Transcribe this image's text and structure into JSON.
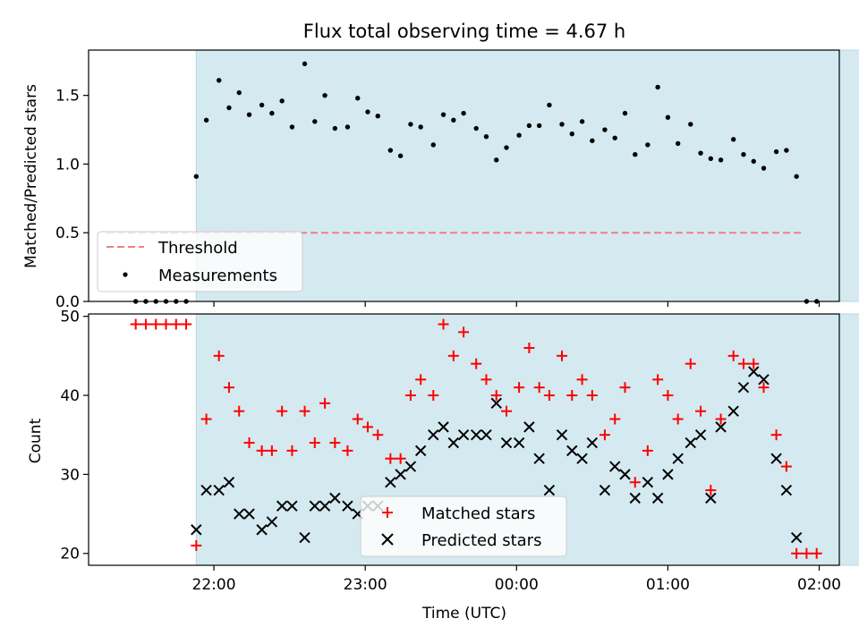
{
  "chart_data": [
    {
      "type": "scatter",
      "title": "Flux total observing time = 4.67 h",
      "ylabel": "Matched/Predicted stars",
      "xlabel": "",
      "ylim": [
        0,
        1.83
      ],
      "yticks": [
        "0.0",
        "0.5",
        "1.0",
        "1.5"
      ],
      "grid": false,
      "legend_position": "lower-left",
      "observing_window": {
        "start": "21:53",
        "end": "02:34"
      },
      "threshold": {
        "name": "Threshold",
        "value": 0.5,
        "color": "#f08080",
        "style": "dashed"
      },
      "series": [
        {
          "name": "Measurements",
          "color": "#000000",
          "marker": "dot",
          "points": [
            [
              "21:29",
              0
            ],
            [
              "21:33",
              0
            ],
            [
              "21:37",
              0
            ],
            [
              "21:41",
              0
            ],
            [
              "21:45",
              0
            ],
            [
              "21:49",
              0
            ],
            [
              "21:53",
              0.91
            ],
            [
              "21:57",
              1.32
            ],
            [
              "22:02",
              1.61
            ],
            [
              "22:06",
              1.41
            ],
            [
              "22:10",
              1.52
            ],
            [
              "22:14",
              1.36
            ],
            [
              "22:19",
              1.43
            ],
            [
              "22:23",
              1.37
            ],
            [
              "22:27",
              1.46
            ],
            [
              "22:31",
              1.27
            ],
            [
              "22:36",
              1.73
            ],
            [
              "22:40",
              1.31
            ],
            [
              "22:44",
              1.5
            ],
            [
              "22:48",
              1.26
            ],
            [
              "22:53",
              1.27
            ],
            [
              "22:57",
              1.48
            ],
            [
              "23:01",
              1.38
            ],
            [
              "23:05",
              1.35
            ],
            [
              "23:10",
              1.1
            ],
            [
              "23:14",
              1.06
            ],
            [
              "23:18",
              1.29
            ],
            [
              "23:22",
              1.27
            ],
            [
              "23:27",
              1.14
            ],
            [
              "23:31",
              1.36
            ],
            [
              "23:35",
              1.32
            ],
            [
              "23:39",
              1.37
            ],
            [
              "23:44",
              1.26
            ],
            [
              "23:48",
              1.2
            ],
            [
              "23:52",
              1.03
            ],
            [
              "23:56",
              1.12
            ],
            [
              "00:01",
              1.21
            ],
            [
              "00:05",
              1.28
            ],
            [
              "00:09",
              1.28
            ],
            [
              "00:13",
              1.43
            ],
            [
              "00:18",
              1.29
            ],
            [
              "00:22",
              1.22
            ],
            [
              "00:26",
              1.31
            ],
            [
              "00:30",
              1.17
            ],
            [
              "00:35",
              1.25
            ],
            [
              "00:39",
              1.19
            ],
            [
              "00:43",
              1.37
            ],
            [
              "00:47",
              1.07
            ],
            [
              "00:52",
              1.14
            ],
            [
              "00:56",
              1.56
            ],
            [
              "01:00",
              1.34
            ],
            [
              "01:04",
              1.15
            ],
            [
              "01:09",
              1.29
            ],
            [
              "01:13",
              1.08
            ],
            [
              "01:17",
              1.04
            ],
            [
              "01:21",
              1.03
            ],
            [
              "01:26",
              1.18
            ],
            [
              "01:30",
              1.07
            ],
            [
              "01:34",
              1.02
            ],
            [
              "01:38",
              0.97
            ],
            [
              "01:43",
              1.09
            ],
            [
              "01:47",
              1.1
            ],
            [
              "01:51",
              0.91
            ],
            [
              "01:55",
              0
            ],
            [
              "01:59",
              0
            ]
          ]
        }
      ]
    },
    {
      "type": "scatter",
      "title": "",
      "ylabel": "Count",
      "xlabel": "Time (UTC)",
      "ylim": [
        18.5,
        50.3
      ],
      "yticks": [
        "20",
        "30",
        "40",
        "50"
      ],
      "xticks": [
        "22:00",
        "23:00",
        "00:00",
        "01:00",
        "02:00"
      ],
      "grid": false,
      "legend_position": "lower-center",
      "observing_window": {
        "start": "21:53",
        "end": "02:34"
      },
      "series": [
        {
          "name": "Matched stars",
          "color": "#ff0000",
          "marker": "plus",
          "points": [
            [
              "21:29",
              49
            ],
            [
              "21:33",
              49
            ],
            [
              "21:37",
              49
            ],
            [
              "21:41",
              49
            ],
            [
              "21:45",
              49
            ],
            [
              "21:49",
              49
            ],
            [
              "21:53",
              21
            ],
            [
              "21:57",
              37
            ],
            [
              "22:02",
              45
            ],
            [
              "22:06",
              41
            ],
            [
              "22:10",
              38
            ],
            [
              "22:14",
              34
            ],
            [
              "22:19",
              33
            ],
            [
              "22:23",
              33
            ],
            [
              "22:27",
              38
            ],
            [
              "22:31",
              33
            ],
            [
              "22:36",
              38
            ],
            [
              "22:40",
              34
            ],
            [
              "22:44",
              39
            ],
            [
              "22:48",
              34
            ],
            [
              "22:53",
              33
            ],
            [
              "22:57",
              37
            ],
            [
              "23:01",
              36
            ],
            [
              "23:05",
              35
            ],
            [
              "23:10",
              32
            ],
            [
              "23:14",
              32
            ],
            [
              "23:18",
              40
            ],
            [
              "23:22",
              42
            ],
            [
              "23:27",
              40
            ],
            [
              "23:31",
              49
            ],
            [
              "23:35",
              45
            ],
            [
              "23:39",
              48
            ],
            [
              "23:44",
              44
            ],
            [
              "23:48",
              42
            ],
            [
              "23:52",
              40
            ],
            [
              "23:56",
              38
            ],
            [
              "00:01",
              41
            ],
            [
              "00:05",
              46
            ],
            [
              "00:09",
              41
            ],
            [
              "00:13",
              40
            ],
            [
              "00:18",
              45
            ],
            [
              "00:22",
              40
            ],
            [
              "00:26",
              42
            ],
            [
              "00:30",
              40
            ],
            [
              "00:35",
              35
            ],
            [
              "00:39",
              37
            ],
            [
              "00:43",
              41
            ],
            [
              "00:47",
              29
            ],
            [
              "00:52",
              33
            ],
            [
              "00:56",
              42
            ],
            [
              "01:00",
              40
            ],
            [
              "01:04",
              37
            ],
            [
              "01:09",
              44
            ],
            [
              "01:13",
              38
            ],
            [
              "01:17",
              28
            ],
            [
              "01:21",
              37
            ],
            [
              "01:26",
              45
            ],
            [
              "01:30",
              44
            ],
            [
              "01:34",
              44
            ],
            [
              "01:38",
              41
            ],
            [
              "01:43",
              35
            ],
            [
              "01:47",
              31
            ],
            [
              "01:51",
              20
            ],
            [
              "01:55",
              20
            ],
            [
              "01:59",
              20
            ]
          ]
        },
        {
          "name": "Predicted stars",
          "color": "#000000",
          "marker": "x",
          "points": [
            [
              "21:53",
              23
            ],
            [
              "21:57",
              28
            ],
            [
              "22:02",
              28
            ],
            [
              "22:06",
              29
            ],
            [
              "22:10",
              25
            ],
            [
              "22:14",
              25
            ],
            [
              "22:19",
              23
            ],
            [
              "22:23",
              24
            ],
            [
              "22:27",
              26
            ],
            [
              "22:31",
              26
            ],
            [
              "22:36",
              22
            ],
            [
              "22:40",
              26
            ],
            [
              "22:44",
              26
            ],
            [
              "22:48",
              27
            ],
            [
              "22:53",
              26
            ],
            [
              "22:57",
              25
            ],
            [
              "23:01",
              26
            ],
            [
              "23:05",
              26
            ],
            [
              "23:10",
              29
            ],
            [
              "23:14",
              30
            ],
            [
              "23:18",
              31
            ],
            [
              "23:22",
              33
            ],
            [
              "23:27",
              35
            ],
            [
              "23:31",
              36
            ],
            [
              "23:35",
              34
            ],
            [
              "23:39",
              35
            ],
            [
              "23:44",
              35
            ],
            [
              "23:48",
              35
            ],
            [
              "23:52",
              39
            ],
            [
              "23:56",
              34
            ],
            [
              "00:01",
              34
            ],
            [
              "00:05",
              36
            ],
            [
              "00:09",
              32
            ],
            [
              "00:13",
              28
            ],
            [
              "00:18",
              35
            ],
            [
              "00:22",
              33
            ],
            [
              "00:26",
              32
            ],
            [
              "00:30",
              34
            ],
            [
              "00:35",
              28
            ],
            [
              "00:39",
              31
            ],
            [
              "00:43",
              30
            ],
            [
              "00:47",
              27
            ],
            [
              "00:52",
              29
            ],
            [
              "00:56",
              27
            ],
            [
              "01:00",
              30
            ],
            [
              "01:04",
              32
            ],
            [
              "01:09",
              34
            ],
            [
              "01:13",
              35
            ],
            [
              "01:17",
              27
            ],
            [
              "01:21",
              36
            ],
            [
              "01:26",
              38
            ],
            [
              "01:30",
              41
            ],
            [
              "01:34",
              43
            ],
            [
              "01:38",
              42
            ],
            [
              "01:43",
              32
            ],
            [
              "01:47",
              28
            ],
            [
              "01:51",
              22
            ]
          ]
        }
      ]
    }
  ],
  "colors": {
    "window": "#d4eaf0",
    "window_edge": "#b0d8e0"
  }
}
